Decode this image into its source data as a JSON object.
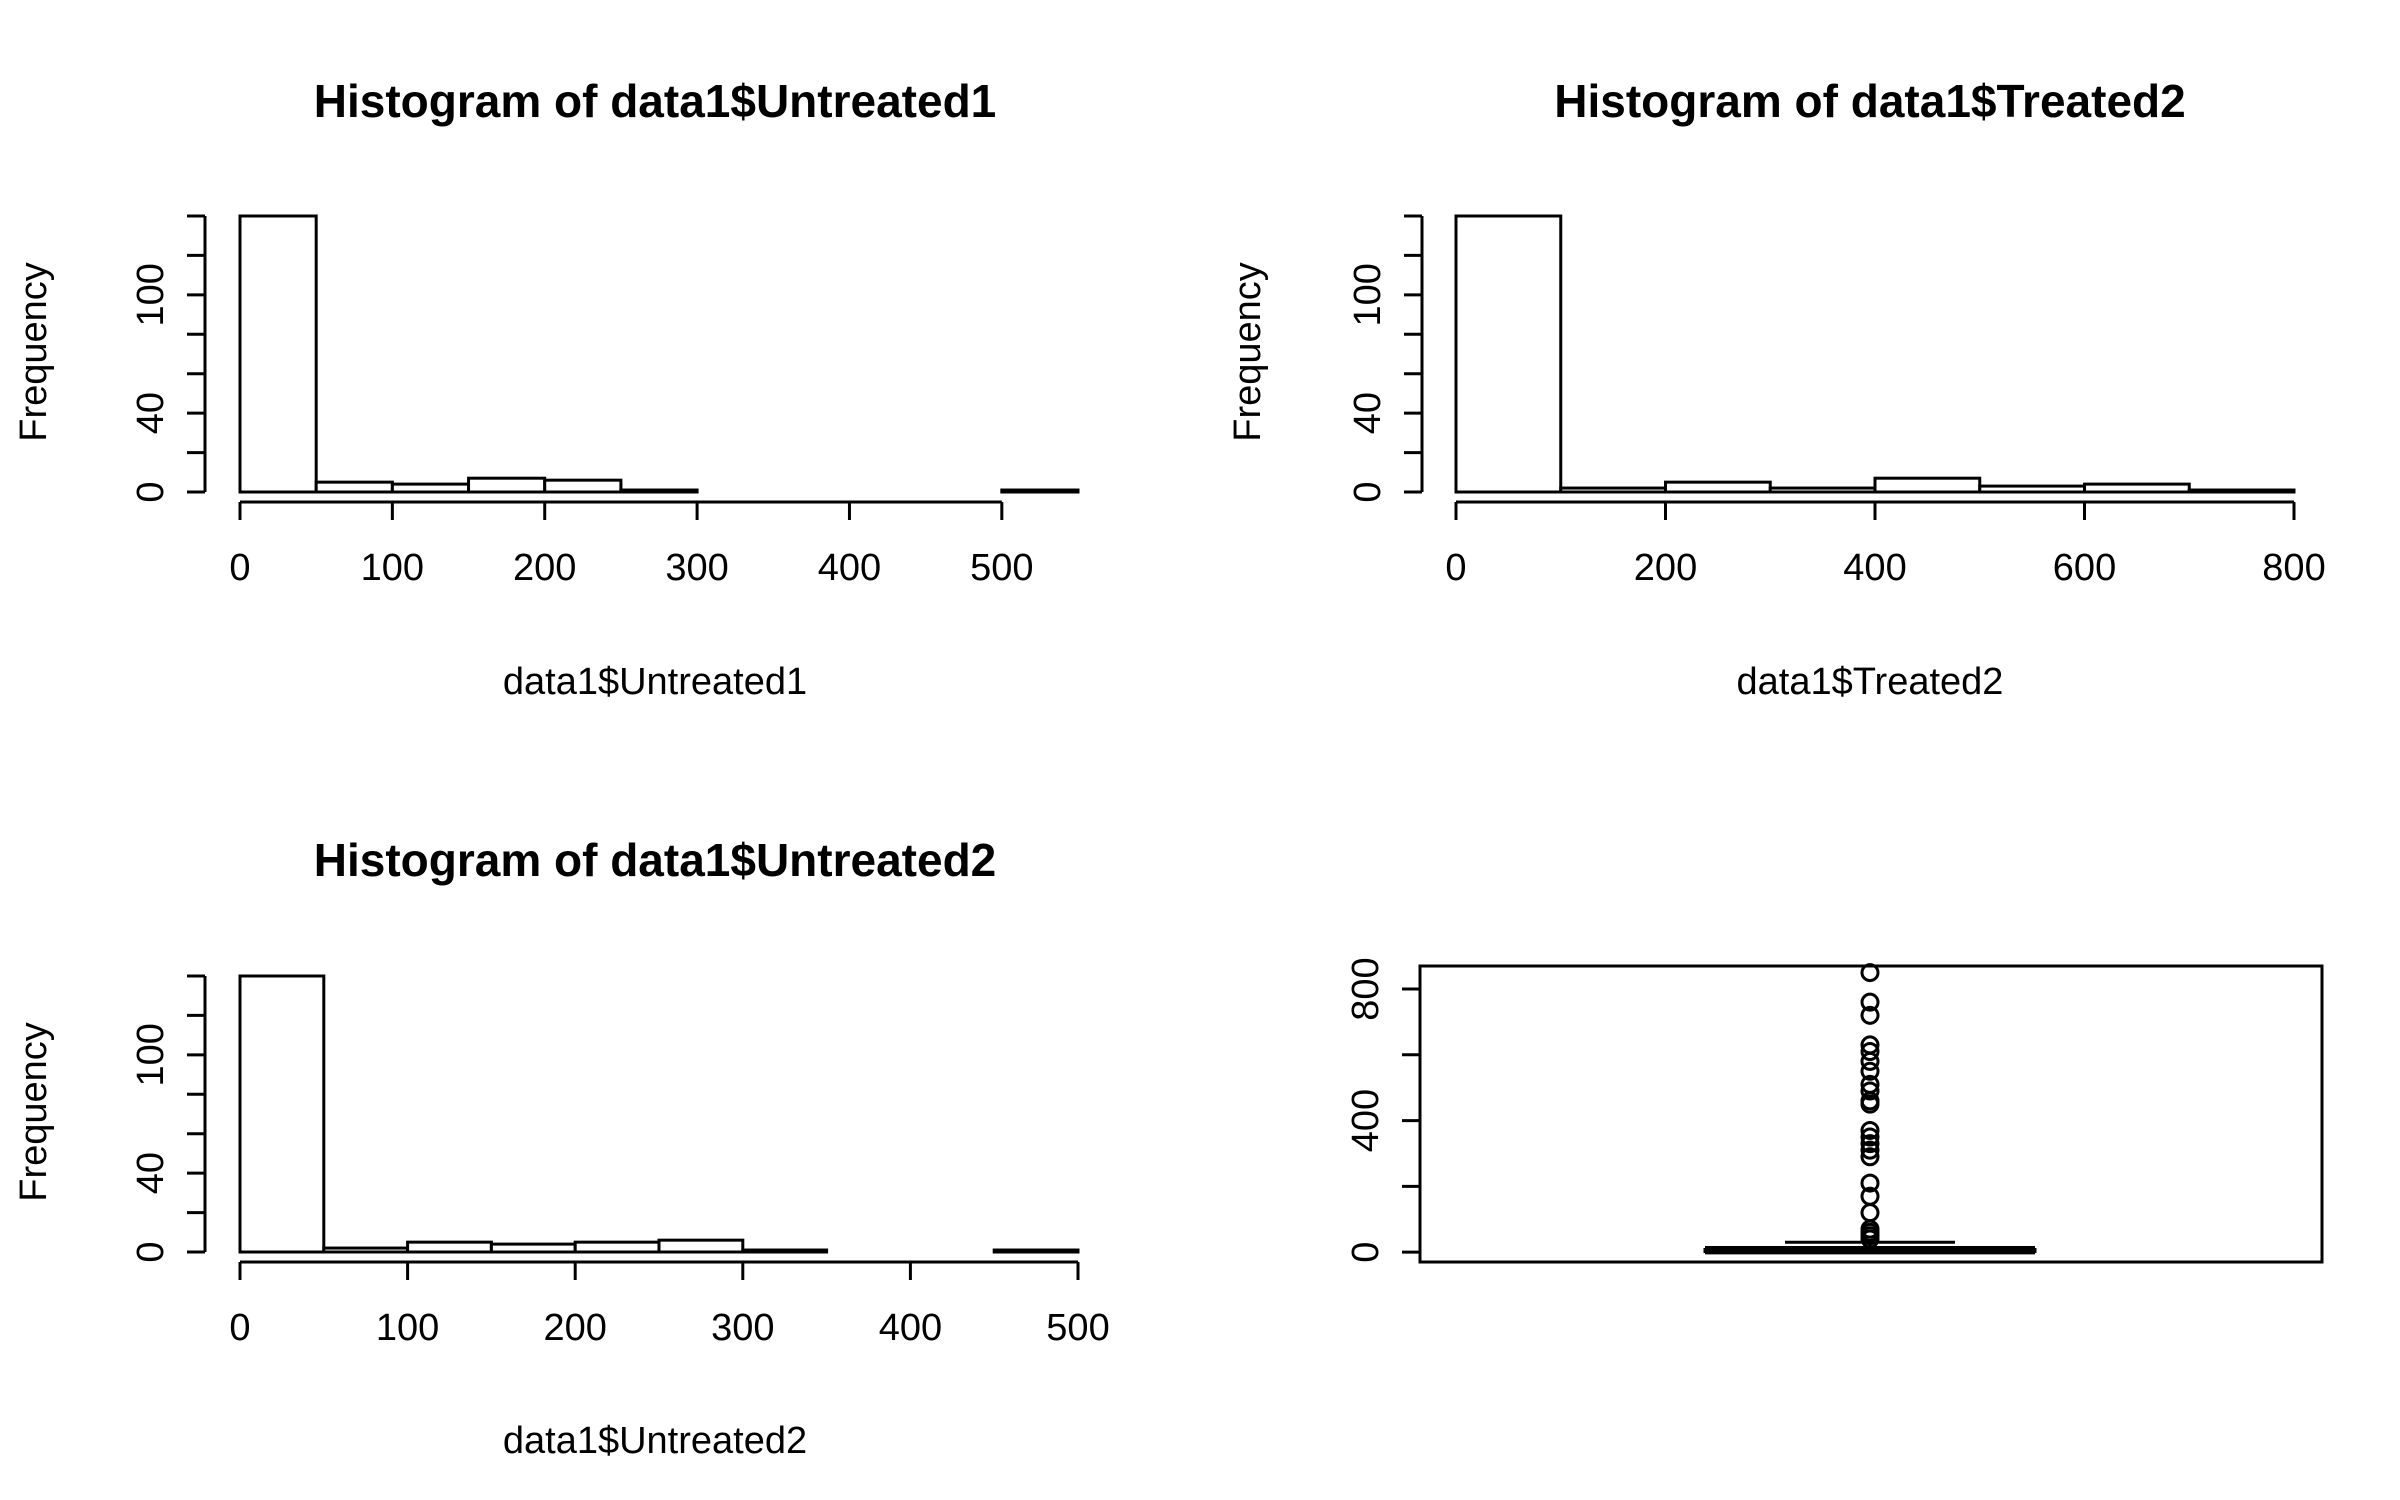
{
  "chart_data": [
    {
      "type": "bar",
      "subtype": "histogram",
      "title": "Histogram of data1$Untreated1",
      "xlabel": "data1$Untreated1",
      "ylabel": "Frequency",
      "xlim": [
        0,
        550
      ],
      "ylim": [
        0,
        140
      ],
      "bin_edges": [
        0,
        50,
        100,
        150,
        200,
        250,
        300,
        350,
        400,
        450,
        500,
        550
      ],
      "values": [
        140,
        5,
        4,
        7,
        6,
        1,
        0,
        0,
        0,
        0,
        1
      ],
      "x_ticks": [
        0,
        100,
        200,
        300,
        400,
        500
      ],
      "x_tick_labels": [
        "0",
        "100",
        "200",
        "300",
        "400",
        "500"
      ],
      "y_ticks": [
        0,
        20,
        40,
        60,
        80,
        100,
        120,
        140
      ],
      "y_tick_labels": [
        "0",
        "",
        "40",
        "",
        "",
        "100",
        "",
        ""
      ],
      "grid": false
    },
    {
      "type": "bar",
      "subtype": "histogram",
      "title": "Histogram of data1$Treated2",
      "xlabel": "data1$Treated2",
      "ylabel": "Frequency",
      "xlim": [
        0,
        800
      ],
      "ylim": [
        0,
        140
      ],
      "bin_edges": [
        0,
        100,
        200,
        300,
        400,
        500,
        600,
        700,
        800
      ],
      "values": [
        140,
        2,
        5,
        2,
        7,
        3,
        4,
        1
      ],
      "x_ticks": [
        0,
        200,
        400,
        600,
        800
      ],
      "x_tick_labels": [
        "0",
        "200",
        "400",
        "600",
        "800"
      ],
      "y_ticks": [
        0,
        20,
        40,
        60,
        80,
        100,
        120,
        140
      ],
      "y_tick_labels": [
        "0",
        "",
        "40",
        "",
        "",
        "100",
        "",
        ""
      ],
      "grid": false
    },
    {
      "type": "bar",
      "subtype": "histogram",
      "title": "Histogram of data1$Untreated2",
      "xlabel": "data1$Untreated2",
      "ylabel": "Frequency",
      "xlim": [
        0,
        500
      ],
      "ylim": [
        0,
        140
      ],
      "bin_edges": [
        0,
        50,
        100,
        150,
        200,
        250,
        300,
        350,
        400,
        450,
        500
      ],
      "values": [
        140,
        2,
        5,
        4,
        5,
        6,
        1,
        0,
        0,
        1
      ],
      "x_ticks": [
        0,
        100,
        200,
        300,
        400,
        500
      ],
      "x_tick_labels": [
        "0",
        "100",
        "200",
        "300",
        "400",
        "500"
      ],
      "y_ticks": [
        0,
        20,
        40,
        60,
        80,
        100,
        120,
        140
      ],
      "y_tick_labels": [
        "0",
        "",
        "40",
        "",
        "",
        "100",
        "",
        ""
      ],
      "grid": false
    },
    {
      "type": "boxplot",
      "title": "",
      "xlabel": "",
      "ylabel": "",
      "ylim": [
        -30,
        870
      ],
      "y_ticks": [
        0,
        200,
        400,
        600,
        800
      ],
      "y_tick_labels": [
        "0",
        "",
        "400",
        "",
        "800"
      ],
      "grid": false,
      "boxes": [
        {
          "stat": "whiskers-and-box",
          "low": 0,
          "q1": 2,
          "median": 4,
          "q3": 8,
          "high": 20
        }
      ],
      "box_ranges": [
        {
          "q1": 2,
          "median": 4,
          "q3": 8,
          "low": 0,
          "high": 14
        },
        {
          "q1": 3,
          "median": 6,
          "q3": 14,
          "low": 0,
          "high": 30
        },
        {
          "q1": 2,
          "median": 4,
          "q3": 8,
          "low": 0,
          "high": 14
        }
      ],
      "outliers": [
        40,
        50,
        60,
        70,
        120,
        170,
        210,
        290,
        310,
        330,
        350,
        370,
        450,
        460,
        490,
        510,
        550,
        580,
        610,
        630,
        720,
        760,
        850
      ]
    }
  ]
}
